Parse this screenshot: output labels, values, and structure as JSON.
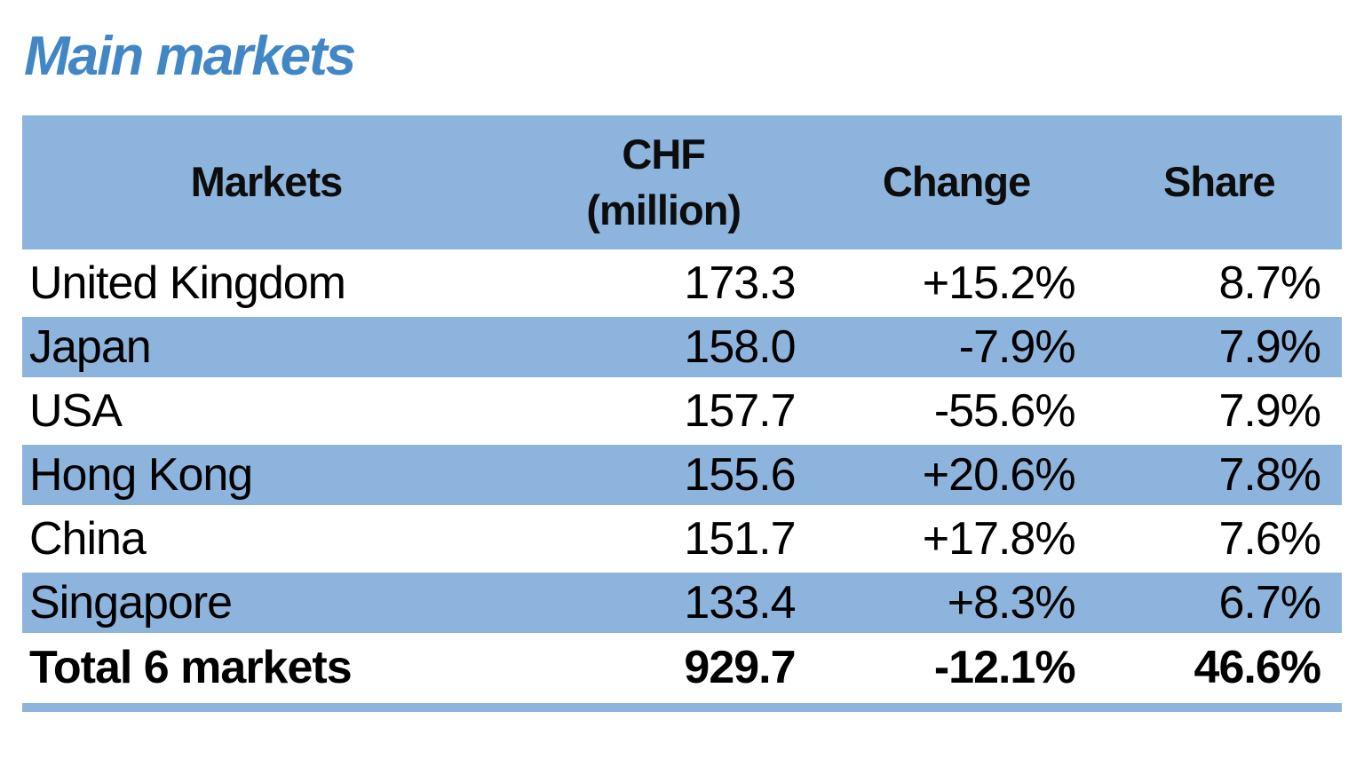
{
  "title": "Main markets",
  "colors": {
    "title_blue": "#4287c5",
    "stripe_blue": "#8db4dc",
    "text_black": "#000000",
    "background": "#ffffff"
  },
  "header": {
    "col1": "Markets",
    "col2_line1": "CHF",
    "col2_line2": "(million)",
    "col3": "Change",
    "col4": "Share"
  },
  "chart_data": {
    "type": "table",
    "title": "Main markets",
    "columns": [
      "Markets",
      "CHF (million)",
      "Change",
      "Share"
    ],
    "rows": [
      [
        "United Kingdom",
        "173.3",
        "+15.2%",
        "8.7%"
      ],
      [
        "Japan",
        "158.0",
        "-7.9%",
        "7.9%"
      ],
      [
        "USA",
        "157.7",
        "-55.6%",
        "7.9%"
      ],
      [
        "Hong Kong",
        "155.6",
        "+20.6%",
        "7.8%"
      ],
      [
        "China",
        "151.7",
        "+17.8%",
        "7.6%"
      ],
      [
        "Singapore",
        "133.4",
        "+8.3%",
        "6.7%"
      ]
    ],
    "total_row": [
      "Total 6 markets",
      "929.7",
      "-12.1%",
      "46.6%"
    ],
    "layout": {
      "striped": true,
      "stripe_color": "#8db4dc",
      "header_background": "#8db4dc",
      "numeric_alignment": "right",
      "total_row_bold": true
    }
  }
}
